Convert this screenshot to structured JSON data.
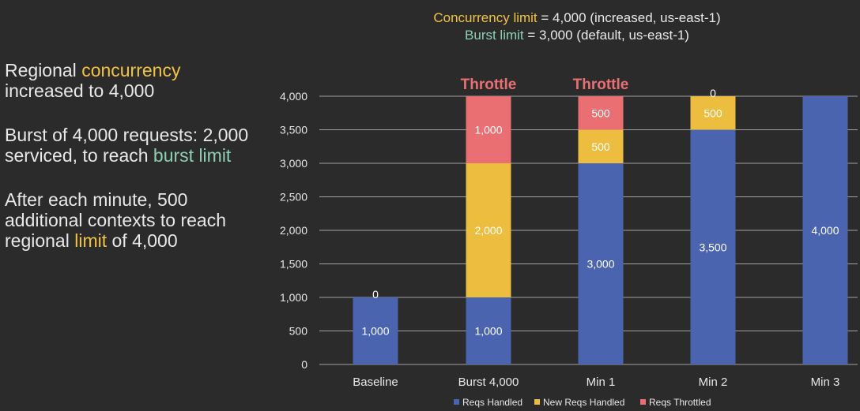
{
  "left_panel": {
    "p1_a": "Regional ",
    "p1_b": "concurrency",
    "p1_c": "increased to 4,000",
    "p2_a": "Burst of 4,000 requests: 2,000 serviced, to reach",
    "p2_b": "burst limit",
    "p3_a": "After each minute, 500 additional contexts to reach regional ",
    "p3_b": "limit",
    "p3_c": " of 4,000"
  },
  "top_legend": {
    "concurrency_label": "Concurrency limit",
    "concurrency_value": " = 4,000 (increased, us-east-1)",
    "burst_label": "Burst limit",
    "burst_value": " = 3,000 (default, us-east-1)"
  },
  "colors": {
    "handled": "#4a64b0",
    "new_handled": "#ecbd3f",
    "throttled": "#ea6f73",
    "grid": "#a0a0a0"
  },
  "chart_data": {
    "type": "bar",
    "stacked": true,
    "categories": [
      "Baseline",
      "Burst 4,000",
      "Min 1",
      "Min 2",
      "Min 3"
    ],
    "ylim": [
      0,
      4000
    ],
    "yticks": [
      0,
      500,
      1000,
      1500,
      2000,
      2500,
      3000,
      3500,
      4000
    ],
    "ytick_labels": [
      "0",
      "500",
      "1,000",
      "1,500",
      "2,000",
      "2,500",
      "3,000",
      "3,500",
      "4,000"
    ],
    "series": [
      {
        "name": "Reqs Handled",
        "values": [
          1000,
          1000,
          3000,
          3500,
          4000
        ]
      },
      {
        "name": "New Reqs Handled",
        "values": [
          0,
          2000,
          500,
          500,
          0
        ]
      },
      {
        "name": "Reqs Throttled",
        "values": [
          0,
          1000,
          500,
          0,
          0
        ]
      }
    ],
    "data_labels": [
      [
        "1,000",
        "1,000",
        "3,000",
        "3,500",
        "4,000"
      ],
      [
        "0",
        "2,000",
        "500",
        "500",
        ""
      ],
      [
        "",
        "1,000",
        "500",
        "0",
        ""
      ]
    ],
    "annotations": [
      "",
      "Throttle",
      "Throttle",
      "",
      ""
    ],
    "legend": [
      "Reqs Handled",
      "New Reqs Handled",
      "Reqs Throttled"
    ]
  }
}
